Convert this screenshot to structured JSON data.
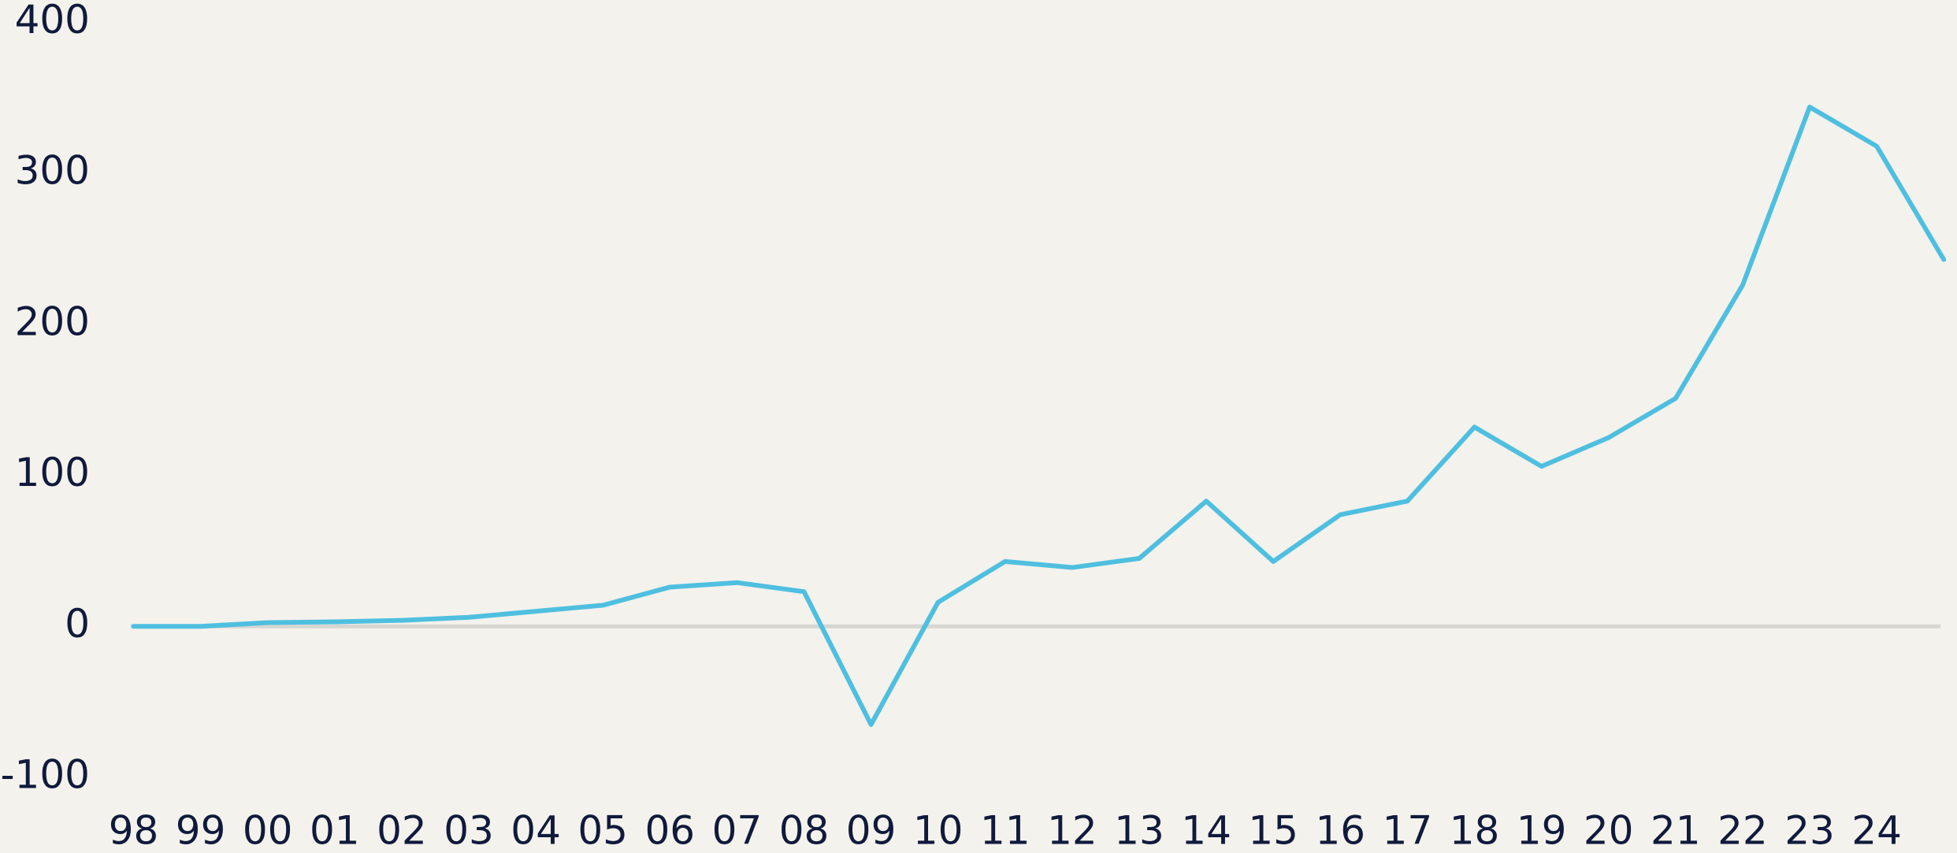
{
  "chart_data": {
    "type": "line",
    "categories": [
      "98",
      "99",
      "00",
      "01",
      "02",
      "03",
      "04",
      "05",
      "06",
      "07",
      "08",
      "09",
      "10",
      "11",
      "12",
      "13",
      "14",
      "15",
      "16",
      "17",
      "18",
      "19",
      "20",
      "21",
      "22",
      "23",
      "24",
      null
    ],
    "series": [
      {
        "color": "#4fbfe0",
        "values": [
          0,
          0,
          2.5,
          3,
          4,
          6,
          10,
          14,
          26,
          29,
          23,
          -65,
          16,
          43,
          39,
          45,
          83,
          43,
          74,
          83,
          132,
          106,
          125,
          151,
          226,
          344,
          318,
          243
        ]
      }
    ],
    "ylim": [
      -100,
      400
    ],
    "yticks": [
      -100,
      0,
      100,
      200,
      300,
      400
    ]
  }
}
